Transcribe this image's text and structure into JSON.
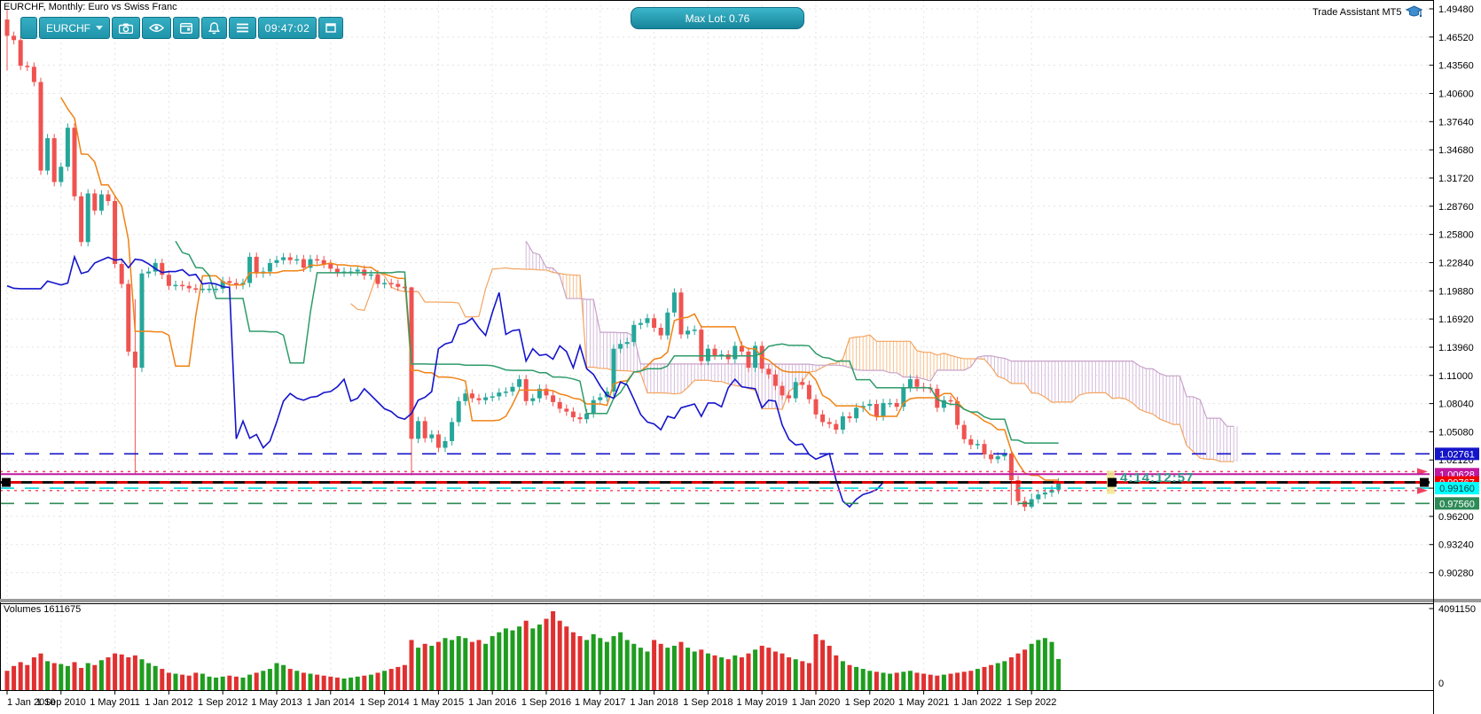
{
  "window": {
    "title": "EURCHF, Monthly: Euro vs Swiss Franc"
  },
  "toolbar": {
    "symbol": "EURCHF",
    "clock": "09:47:02",
    "icons": [
      "camera-icon",
      "eye-icon",
      "calendar-icon",
      "bell-icon",
      "menu-icon",
      "expand-icon"
    ]
  },
  "overlay": {
    "max_lot": "Max Lot: 0.76",
    "trade_assistant": "Trade Assistant MT5",
    "countdown": "4:14:12:57"
  },
  "volume_panel": {
    "title": "Volumes 1611675",
    "axis_max": "4091150",
    "axis_min": "0"
  },
  "price_axis": {
    "labels": [
      "1.49480",
      "1.46520",
      "1.43560",
      "1.40600",
      "1.37640",
      "1.34680",
      "1.31720",
      "1.28760",
      "1.25800",
      "1.22840",
      "1.19880",
      "1.16920",
      "1.13960",
      "1.11000",
      "1.08040",
      "1.05080",
      "1.02120",
      "0.99160",
      "0.96200",
      "0.93240",
      "0.90280"
    ],
    "top_value": 1.4948,
    "step": 0.0296
  },
  "date_axis": {
    "labels": [
      "1 Jan 2010",
      "1 Sep 2010",
      "1 May 2011",
      "1 Jan 2012",
      "1 Sep 2012",
      "1 May 2013",
      "1 Jan 2014",
      "1 Sep 2014",
      "1 May 2015",
      "1 Jan 2016",
      "1 Sep 2016",
      "1 May 2017",
      "1 Jan 2018",
      "1 Sep 2018",
      "1 May 2019",
      "1 Jan 2020",
      "1 Sep 2020",
      "1 May 2021",
      "1 Jan 2022",
      "1 Sep 2022"
    ],
    "months_between_ticks": 8
  },
  "levels": [
    {
      "price": 1.02761,
      "label": "1.02761",
      "line": "dash",
      "color": "#1414c8",
      "badge_bg": "#1414c8",
      "badge_fg": "#ffffff"
    },
    {
      "price": 1.009,
      "label": "",
      "line": "dotted-arrow",
      "color": "#f04060"
    },
    {
      "price": 1.00628,
      "label": "1.00628",
      "line": "solid",
      "color": "#c018a0",
      "badge_bg": "#c018a0",
      "badge_fg": "#ffffff"
    },
    {
      "price": 0.99767,
      "label": "0.99767",
      "line": "bid",
      "color": "#111111",
      "badge_bg": "#ee0000",
      "badge_fg": "#ffffff"
    },
    {
      "price": 0.9916,
      "label": "0.99160",
      "line": "dash",
      "color": "#00d8d8",
      "badge_bg": "#00ffff",
      "badge_fg": "#063a3a"
    },
    {
      "price": 0.9891,
      "label": "",
      "line": "dotted-arrow",
      "color": "#f04060"
    },
    {
      "price": 0.9756,
      "label": "0.97560",
      "line": "dash",
      "color": "#2e8b57",
      "badge_bg": "#2e8b57",
      "badge_fg": "#ffffff"
    }
  ],
  "chart_data": {
    "type": "candlestick",
    "symbol": "EURCHF",
    "timeframe": "Monthly",
    "title": "EURCHF, Monthly: Euro vs Swiss Franc",
    "start": "2010-01",
    "months": 157,
    "open_first": 1.4836,
    "bid": 0.99767,
    "ylim": [
      0.9028,
      1.4948
    ],
    "volume_ylim": [
      0,
      4091150
    ],
    "current_volume": 1611675,
    "closes": [
      1.4665,
      1.462,
      1.435,
      1.434,
      1.418,
      1.325,
      1.359,
      1.313,
      1.329,
      1.37,
      1.298,
      1.25,
      1.301,
      1.283,
      1.3,
      1.293,
      1.227,
      1.206,
      1.135,
      1.118,
      1.217,
      1.219,
      1.228,
      1.2156,
      1.204,
      1.205,
      1.204,
      1.2014,
      1.201,
      1.201,
      1.201,
      1.201,
      1.209,
      1.207,
      1.205,
      1.207,
      1.2345,
      1.217,
      1.219,
      1.228,
      1.231,
      1.234,
      1.231,
      1.232,
      1.223,
      1.232,
      1.231,
      1.227,
      1.222,
      1.218,
      1.219,
      1.219,
      1.221,
      1.215,
      1.216,
      1.206,
      1.207,
      1.206,
      1.203,
      1.2024,
      1.0434,
      1.062,
      1.044,
      1.048,
      1.034,
      1.041,
      1.061,
      1.083,
      1.091,
      1.086,
      1.084,
      1.087,
      1.088,
      1.092,
      1.093,
      1.098,
      1.106,
      1.083,
      1.086,
      1.096,
      1.089,
      1.082,
      1.075,
      1.072,
      1.066,
      1.064,
      1.07,
      1.084,
      1.087,
      1.093,
      1.138,
      1.143,
      1.145,
      1.163,
      1.165,
      1.17,
      1.16,
      1.152,
      1.176,
      1.197,
      1.153,
      1.157,
      1.158,
      1.125,
      1.138,
      1.131,
      1.132,
      1.127,
      1.141,
      1.135,
      1.118,
      1.141,
      1.117,
      1.111,
      1.099,
      1.089,
      1.086,
      1.103,
      1.1,
      1.085,
      1.069,
      1.061,
      1.059,
      1.053,
      1.067,
      1.065,
      1.076,
      1.078,
      1.08,
      1.067,
      1.081,
      1.081,
      1.077,
      1.097,
      1.106,
      1.098,
      1.097,
      1.096,
      1.076,
      1.084,
      1.083,
      1.058,
      1.043,
      1.037,
      1.038,
      1.027,
      1.022,
      1.025,
      1.028,
      1.0,
      0.978,
      0.972,
      0.98,
      0.985,
      0.987,
      0.99,
      0.99767
    ],
    "wick_overrides": {
      "0": [
        1.4948,
        1.43
      ],
      "19": [
        1.19,
        1.007
      ],
      "60": [
        1.203,
        1.005
      ],
      "149": [
        1.03,
        0.974
      ],
      "152": [
        0.986,
        0.97
      ]
    },
    "volumes": [
      1000000,
      1250000,
      1450000,
      1300000,
      1700000,
      1900000,
      1500000,
      1400000,
      1350000,
      1250000,
      1450000,
      1150000,
      1400000,
      1300000,
      1550000,
      1700000,
      1900000,
      1850000,
      1700000,
      1800000,
      1600000,
      1400000,
      1250000,
      1100000,
      900000,
      850000,
      800000,
      750000,
      900000,
      850000,
      700000,
      650000,
      700000,
      750000,
      700000,
      650000,
      800000,
      900000,
      1000000,
      1100000,
      1400000,
      1300000,
      1100000,
      1000000,
      900000,
      850000,
      800000,
      750000,
      700000,
      650000,
      600000,
      650000,
      700000,
      750000,
      800000,
      900000,
      1000000,
      1100000,
      1200000,
      1300000,
      2600000,
      2200000,
      2400000,
      2300000,
      2500000,
      2700000,
      2600000,
      2800000,
      2700000,
      2500000,
      2600000,
      2400000,
      2800000,
      3000000,
      3200000,
      3100000,
      3300000,
      3600000,
      3200000,
      3400000,
      3700000,
      4091150,
      3600000,
      3300000,
      3000000,
      2800000,
      2600000,
      2900000,
      2700000,
      2500000,
      2800000,
      3000000,
      2600000,
      2400000,
      2200000,
      2000000,
      2600000,
      2400000,
      2200000,
      2300000,
      2500000,
      2200000,
      2000000,
      2100000,
      1900000,
      1800000,
      1700000,
      1600000,
      1800000,
      1700000,
      1900000,
      2100000,
      2300000,
      2200000,
      2000000,
      1900000,
      1700000,
      1600000,
      1500000,
      1400000,
      2900000,
      2600000,
      2300000,
      1800000,
      1500000,
      1300000,
      1200000,
      1100000,
      1000000,
      950000,
      900000,
      850000,
      900000,
      950000,
      1000000,
      900000,
      850000,
      800000,
      750000,
      800000,
      850000,
      900000,
      950000,
      1000000,
      1100000,
      1200000,
      1300000,
      1400000,
      1500000,
      1700000,
      1900000,
      2100000,
      2400000,
      2600000,
      2700000,
      2500000,
      1611675
    ],
    "indicator": {
      "name": "Ichimoku Kinko Hyo",
      "tenkan": 9,
      "kijun": 26,
      "senkou": 52,
      "colors": {
        "tenkan": "#f08214",
        "kijun": "#2e9b6b",
        "chikou": "#1414cc",
        "senkou_a": "#f4a460",
        "senkou_b": "#c8a2c8",
        "hatch_a": "#f7c08a",
        "hatch_b": "#d4bbdc"
      }
    }
  },
  "colors": {
    "bull": "#26a69a",
    "bear": "#ef5350",
    "vol_up": "#1f9d1f",
    "vol_down": "#e03030",
    "grid": "#e3e3e3",
    "axis": "#000000",
    "separator": "#9a9a9a",
    "teal_ui": "#2ba6bc",
    "highlight_band": "#f0e68c"
  }
}
